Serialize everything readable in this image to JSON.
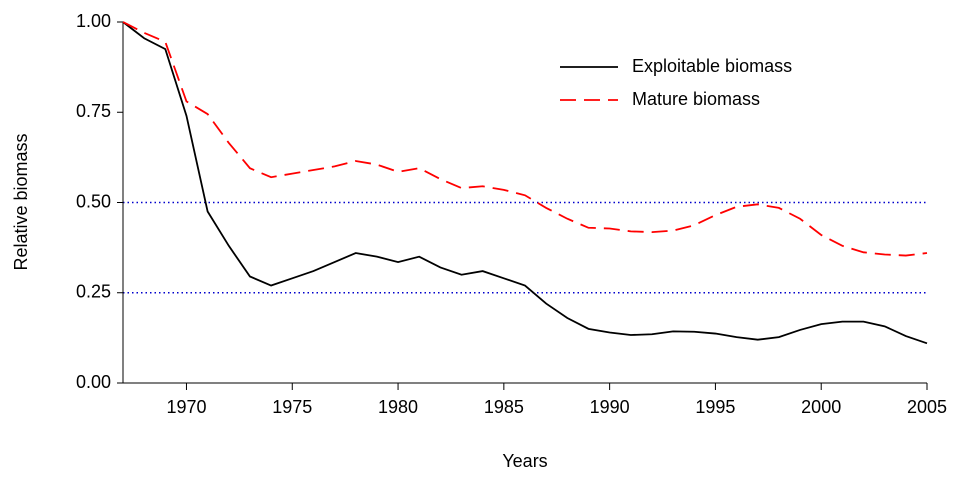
{
  "chart_data": {
    "type": "line",
    "xlabel": "Years",
    "ylabel": "Relative biomass",
    "x": [
      1967,
      1968,
      1969,
      1970,
      1971,
      1972,
      1973,
      1974,
      1975,
      1976,
      1977,
      1978,
      1979,
      1980,
      1981,
      1982,
      1983,
      1984,
      1985,
      1986,
      1987,
      1988,
      1989,
      1990,
      1991,
      1992,
      1993,
      1994,
      1995,
      1996,
      1997,
      1998,
      1999,
      2000,
      2001,
      2002,
      2003,
      2004,
      2005
    ],
    "series": [
      {
        "name": "Exploitable biomass",
        "color": "#000000",
        "dash": "solid",
        "values": [
          1.0,
          0.955,
          0.925,
          0.74,
          0.475,
          0.38,
          0.295,
          0.27,
          0.29,
          0.31,
          0.335,
          0.36,
          0.35,
          0.335,
          0.35,
          0.32,
          0.3,
          0.31,
          0.29,
          0.27,
          0.22,
          0.18,
          0.15,
          0.14,
          0.133,
          0.135,
          0.143,
          0.142,
          0.137,
          0.127,
          0.12,
          0.127,
          0.147,
          0.163,
          0.17,
          0.17,
          0.157,
          0.13,
          0.11
        ]
      },
      {
        "name": "Mature biomass",
        "color": "#ff0000",
        "dash": "dashed",
        "values": [
          1.0,
          0.97,
          0.945,
          0.78,
          0.745,
          0.665,
          0.595,
          0.57,
          0.58,
          0.59,
          0.6,
          0.615,
          0.605,
          0.585,
          0.595,
          0.565,
          0.54,
          0.545,
          0.535,
          0.52,
          0.485,
          0.455,
          0.43,
          0.428,
          0.42,
          0.418,
          0.422,
          0.437,
          0.465,
          0.488,
          0.495,
          0.485,
          0.455,
          0.41,
          0.38,
          0.362,
          0.356,
          0.353,
          0.36
        ]
      }
    ],
    "reference_lines": [
      0.5,
      0.25
    ],
    "reference_color": "#0000cc",
    "xlim": [
      1967,
      2005
    ],
    "xticks": [
      1970,
      1975,
      1980,
      1985,
      1990,
      1995,
      2000,
      2005
    ],
    "ylim": [
      0,
      1
    ],
    "yticks": [
      {
        "value": 0,
        "label": "0.00"
      },
      {
        "value": 0.25,
        "label": "0.25"
      },
      {
        "value": 0.5,
        "label": "0.50"
      },
      {
        "value": 0.75,
        "label": "0.75"
      },
      {
        "value": 1,
        "label": "1.00"
      }
    ],
    "legend": "upper right"
  }
}
